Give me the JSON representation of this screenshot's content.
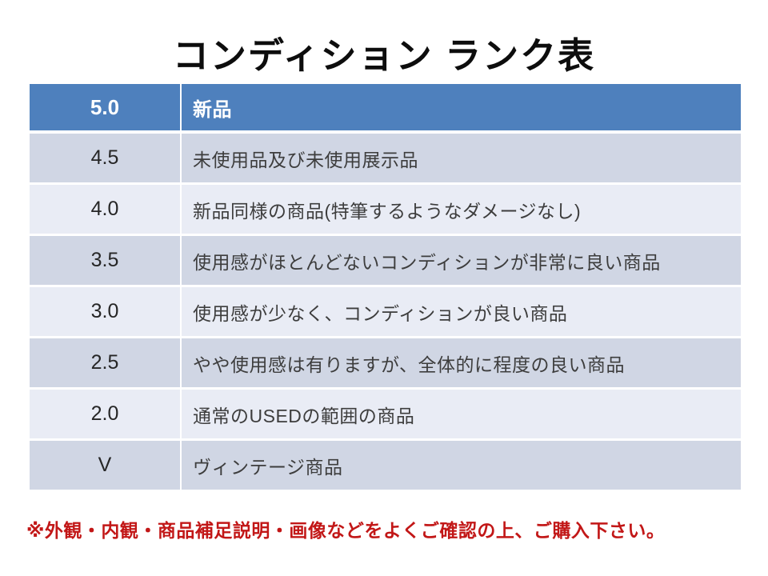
{
  "title": "コンディション ランク表",
  "table": {
    "header": {
      "rank": "5.0",
      "description": "新品"
    },
    "rows": [
      {
        "rank": "4.5",
        "description": "未使用品及び未使用展示品"
      },
      {
        "rank": "4.0",
        "description": "新品同様の商品(特筆するようなダメージなし)"
      },
      {
        "rank": "3.5",
        "description": "使用感がほとんどないコンディションが非常に良い商品"
      },
      {
        "rank": "3.0",
        "description": "使用感が少なく、コンディションが良い商品"
      },
      {
        "rank": "2.5",
        "description": "やや使用感は有りますが、全体的に程度の良い商品"
      },
      {
        "rank": "2.0",
        "description": "通常のUSEDの範囲の商品"
      },
      {
        "rank": "V",
        "description": "ヴィンテージ商品"
      }
    ]
  },
  "footer": {
    "note": "※外観・内観・商品補足説明・画像などをよくご確認の上、ご購入下さい。"
  },
  "colors": {
    "header_bg": "#4e80bd",
    "band_dark": "#d0d6e4",
    "band_light": "#e9ecf5",
    "note_red": "#c21717"
  }
}
